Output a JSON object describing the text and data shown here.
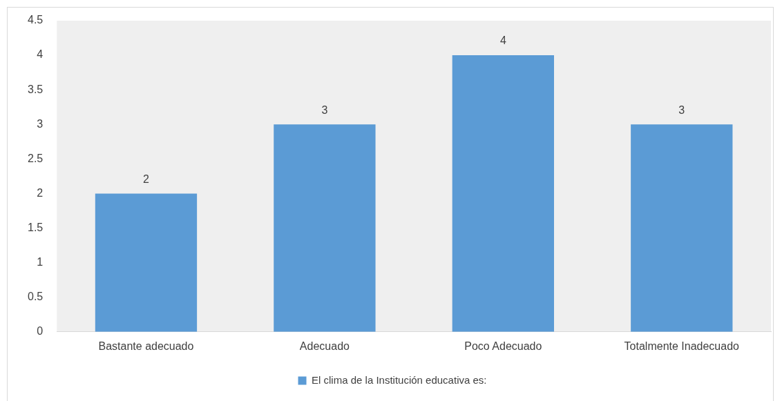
{
  "chart_data": {
    "type": "bar",
    "categories": [
      "Bastante adecuado",
      "Adecuado",
      "Poco Adecuado",
      "Totalmente Inadecuado"
    ],
    "series": [
      {
        "name": "El clima de la Institución educativa es:",
        "color": "#5b9bd5",
        "values": [
          2,
          3,
          4,
          3
        ]
      }
    ],
    "ylim": [
      0,
      4.5
    ],
    "yticks": [
      0,
      0.5,
      1,
      1.5,
      2,
      2.5,
      3,
      3.5,
      4,
      4.5
    ],
    "grid": false,
    "legend": "bottom",
    "data_labels": true
  }
}
